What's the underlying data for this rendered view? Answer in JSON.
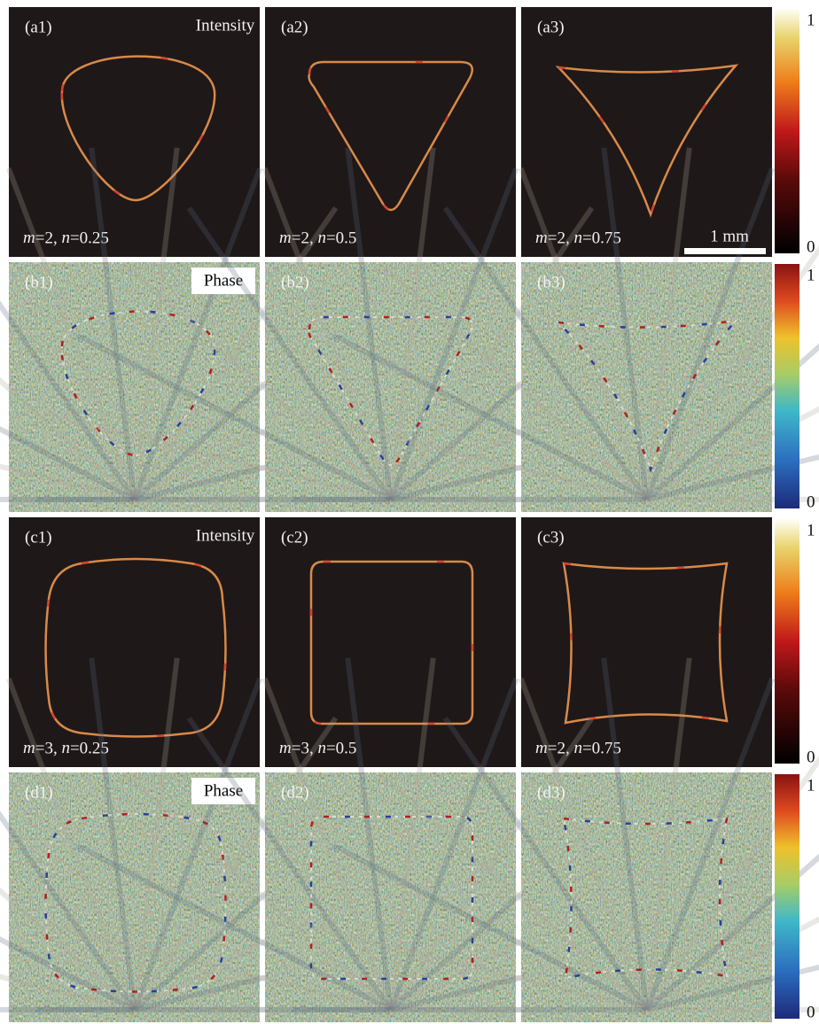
{
  "rows": [
    {
      "panels": [
        {
          "label": "(a1)",
          "title": "Intensity",
          "caption": "m=2, n=0.25"
        },
        {
          "label": "(a2)",
          "caption": "m=2, n=0.5"
        },
        {
          "label": "(a3)",
          "caption": "m=2, n=0.75"
        }
      ],
      "colorbar": {
        "max": 1,
        "min": 0
      }
    },
    {
      "panels": [
        {
          "label": "(b1)",
          "title": "Phase"
        },
        {
          "label": "(b2)"
        },
        {
          "label": "(b3)"
        }
      ],
      "colorbar": {
        "max": 1,
        "min": 0
      }
    },
    {
      "panels": [
        {
          "label": "(c1)",
          "title": "Intensity",
          "caption": "m=3, n=0.25"
        },
        {
          "label": "(c2)",
          "caption": "m=3, n=0.5"
        },
        {
          "label": "(c3)",
          "caption": "m=2, n=0.75"
        }
      ],
      "colorbar": {
        "max": 1,
        "min": 0
      }
    },
    {
      "panels": [
        {
          "label": "(d1)",
          "title": "Phase"
        },
        {
          "label": "(d2)"
        },
        {
          "label": "(d3)"
        }
      ],
      "colorbar": {
        "max": 1,
        "min": 0
      }
    }
  ],
  "scale_bar": "1 mm"
}
